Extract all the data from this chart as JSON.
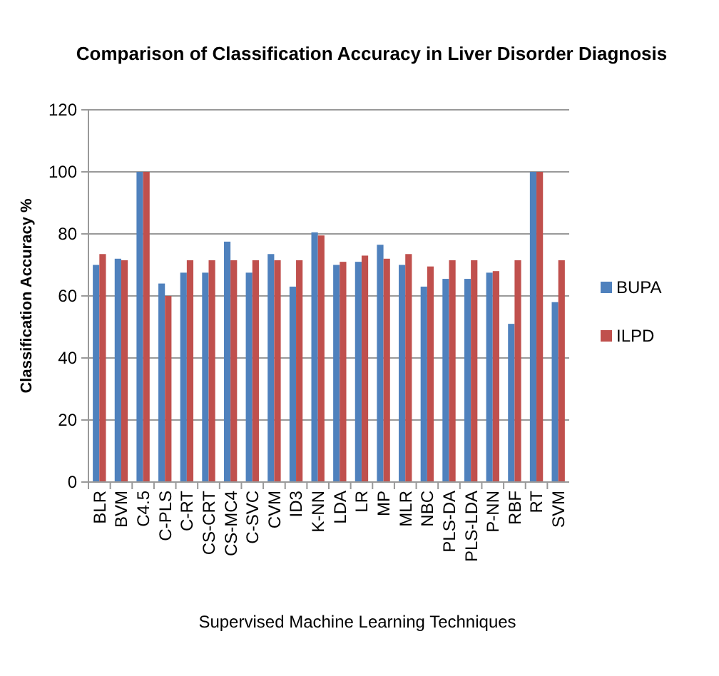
{
  "chart_data": {
    "type": "bar",
    "title": "Comparison of Classification Accuracy in Liver Disorder Diagnosis",
    "xlabel": "Supervised Machine  Learning Techniques",
    "ylabel": "Classification   Accuracy %",
    "categories": [
      "BLR",
      "BVM",
      "C4.5",
      "C-PLS",
      "C-RT",
      "CS-CRT",
      "CS-MC4",
      "C-SVC",
      "CVM",
      "ID3",
      "K-NN",
      "LDA",
      "LR",
      "MP",
      "MLR",
      "NBC",
      "PLS-DA",
      "PLS-LDA",
      "P-NN",
      "RBF",
      "RT",
      "SVM"
    ],
    "series": [
      {
        "name": "BUPA",
        "color": "#4f81bd",
        "values": [
          70,
          72,
          100,
          64,
          67.5,
          67.5,
          77.5,
          67.5,
          73.5,
          63,
          80.5,
          70,
          71,
          76.5,
          70,
          63,
          65.5,
          65.5,
          67.5,
          51,
          100,
          58
        ]
      },
      {
        "name": "ILPD",
        "color": "#c0504d",
        "values": [
          73.5,
          71.5,
          100,
          60,
          71.5,
          71.5,
          71.5,
          71.5,
          71.5,
          71.5,
          79.5,
          71,
          73,
          72,
          73.5,
          69.5,
          71.5,
          71.5,
          68,
          71.5,
          100,
          71.5
        ]
      }
    ],
    "ylim": [
      0,
      120
    ],
    "yticks": [
      0,
      20,
      40,
      60,
      80,
      100,
      120
    ],
    "grid": "y",
    "legend": "right"
  }
}
